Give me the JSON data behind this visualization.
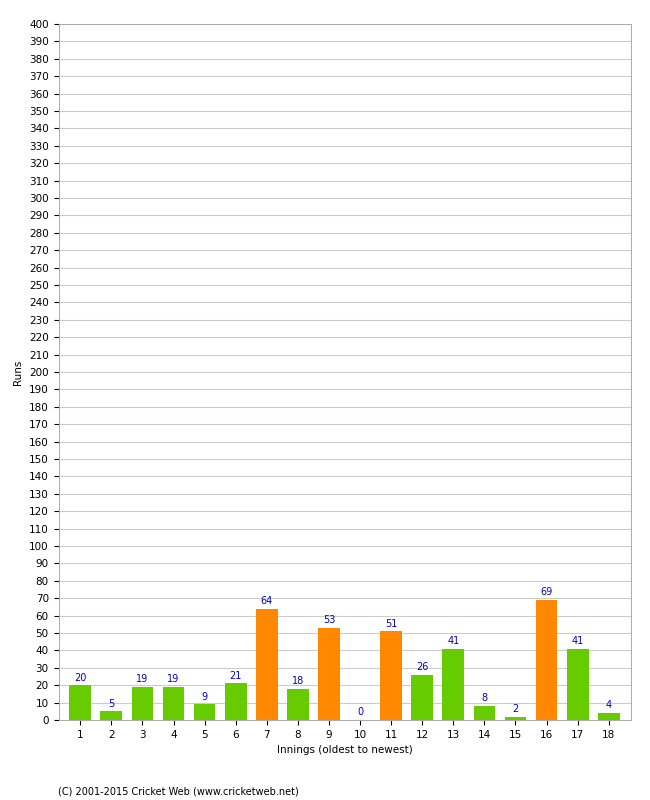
{
  "values": [
    20,
    5,
    19,
    19,
    9,
    21,
    64,
    18,
    53,
    0,
    51,
    26,
    41,
    8,
    2,
    69,
    41,
    4
  ],
  "innings": [
    1,
    2,
    3,
    4,
    5,
    6,
    7,
    8,
    9,
    10,
    11,
    12,
    13,
    14,
    15,
    16,
    17,
    18
  ],
  "orange_innings": [
    7,
    9,
    11,
    16
  ],
  "green_color": "#66cc00",
  "orange_color": "#ff8800",
  "label_color": "#0000cc",
  "xlabel": "Innings (oldest to newest)",
  "ylabel": "Runs",
  "ylim": [
    0,
    400
  ],
  "ytick_step": 10,
  "background_color": "#ffffff",
  "grid_color": "#cccccc",
  "footer": "(C) 2001-2015 Cricket Web (www.cricketweb.net)",
  "label_fontsize": 7,
  "axis_fontsize": 7.5,
  "ylabel_fontsize": 7.5
}
